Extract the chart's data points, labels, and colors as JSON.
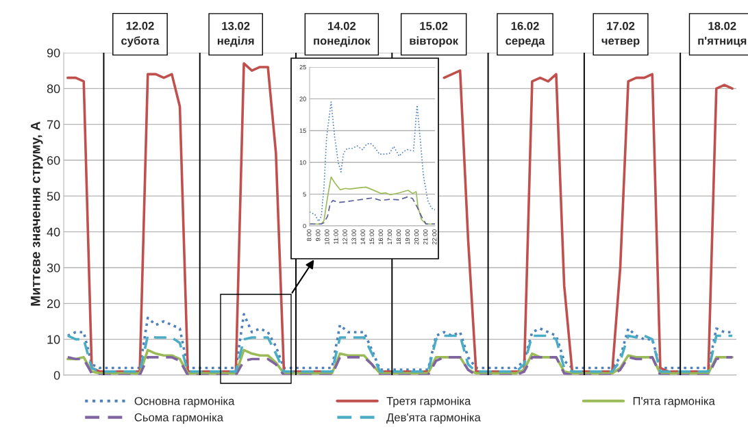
{
  "chart_data": [
    {
      "type": "line",
      "ylabel": "Миттєве значення струму, А",
      "ylim": [
        0,
        90
      ],
      "yticks": [
        0,
        10,
        20,
        30,
        40,
        50,
        60,
        70,
        80,
        90
      ],
      "grid": "y",
      "legend": "bottom",
      "categories": [
        null,
        null,
        null,
        null,
        null,
        null,
        null,
        null,
        null,
        null,
        null,
        null,
        null,
        null,
        null,
        null,
        null,
        null,
        null,
        null,
        null,
        null,
        null,
        null,
        null,
        null,
        null,
        null,
        null,
        null,
        null,
        null,
        null,
        null,
        null,
        null,
        null,
        null,
        null,
        null,
        null,
        null,
        null,
        null,
        null,
        null,
        null,
        null,
        null,
        null,
        null,
        null,
        null,
        null,
        null,
        null,
        null,
        null,
        null,
        null,
        null,
        null,
        null,
        null,
        null,
        null,
        null,
        null,
        null,
        null,
        null,
        null,
        null,
        null,
        null,
        null,
        null,
        null,
        null,
        null,
        null,
        null,
        null,
        null
      ],
      "series": [
        {
          "name": "Основна гармоніка",
          "color": "#4f81bd",
          "line_style": "dotted",
          "values": [
            11,
            12,
            12,
            3,
            2,
            2,
            2,
            2,
            2,
            2,
            16,
            14,
            15,
            14,
            13,
            2,
            2,
            2,
            2,
            2,
            2,
            2,
            17,
            12,
            13,
            12,
            8,
            2,
            2,
            2,
            2,
            2,
            2,
            2,
            14,
            12,
            12,
            12,
            7,
            1.5,
            1.5,
            1.5,
            1.5,
            1.5,
            1.5,
            1.5,
            11,
            12,
            11,
            12,
            5,
            2,
            2,
            2,
            2,
            2,
            2,
            4,
            12,
            13,
            12,
            11,
            4,
            2,
            2,
            2,
            2,
            2,
            2,
            5,
            13,
            11,
            10,
            10,
            2,
            2,
            2,
            2,
            2,
            2,
            2,
            13,
            12,
            12
          ]
        },
        {
          "name": "Третя гармоніка",
          "color": "#c0504d",
          "line_style": "solid",
          "values": [
            83,
            83,
            82,
            2,
            1,
            1,
            1,
            1,
            1,
            1,
            84,
            84,
            83,
            84,
            75,
            1,
            1,
            1,
            1,
            1,
            1,
            1,
            87,
            85,
            86,
            86,
            62,
            1,
            1,
            1,
            1,
            1,
            1,
            1,
            null,
            null,
            null,
            null,
            null,
            1,
            1,
            1,
            1,
            1,
            1,
            1,
            null,
            83,
            84,
            85,
            38,
            1,
            1,
            1,
            1,
            1,
            1,
            1,
            82,
            83,
            82,
            84,
            25,
            1,
            1,
            1,
            1,
            1,
            1,
            30,
            82,
            83,
            83,
            84,
            2,
            1,
            1,
            1,
            1,
            1,
            1,
            80,
            81,
            80
          ]
        },
        {
          "name": "П'ята гармоніка",
          "color": "#9bbb59",
          "line_style": "solid",
          "values": [
            4.5,
            4.5,
            5,
            1,
            0.5,
            0.5,
            0.5,
            0.5,
            0.5,
            0.5,
            7,
            6,
            5.5,
            5.5,
            4.5,
            0.5,
            0.5,
            0.5,
            0.5,
            0.5,
            0.5,
            0.5,
            7,
            6,
            5.5,
            5.5,
            3.5,
            0.5,
            0.5,
            0.5,
            0.5,
            0.5,
            0.5,
            0.5,
            6,
            5.5,
            5.5,
            5.5,
            3,
            0.5,
            0.5,
            0.5,
            0.5,
            0.5,
            0.5,
            0.5,
            5,
            5,
            5,
            5,
            1.5,
            0.5,
            0.5,
            0.5,
            0.5,
            0.5,
            0.5,
            1.5,
            6,
            5,
            5,
            5,
            1,
            0.5,
            0.5,
            0.5,
            0.5,
            0.5,
            0.5,
            2,
            5.5,
            5,
            5,
            5,
            0.5,
            0.5,
            0.5,
            0.5,
            0.5,
            0.5,
            0.5,
            5,
            5,
            5
          ]
        },
        {
          "name": "Сьома гармоніка",
          "color": "#8064a2",
          "line_style": "dashed",
          "values": [
            5,
            4.5,
            4.5,
            0.5,
            0,
            0,
            0,
            0,
            0,
            0,
            5,
            5,
            5,
            5,
            4,
            0,
            0,
            0,
            0,
            0,
            0,
            0,
            4,
            4.5,
            4.5,
            4.5,
            3,
            0,
            0,
            0,
            0,
            0,
            0,
            0,
            5,
            5,
            5,
            5,
            3,
            0,
            0,
            0,
            0,
            0,
            0,
            0,
            4,
            5,
            5,
            5,
            1.5,
            0,
            0,
            0,
            0,
            0,
            0,
            1,
            5,
            5,
            5,
            5,
            0.5,
            0,
            0,
            0,
            0,
            0,
            0,
            1.5,
            5,
            4.5,
            4.5,
            5,
            0,
            0,
            0,
            0,
            0,
            0,
            0,
            4.5,
            5,
            5
          ]
        },
        {
          "name": "Дев'ята гармоніка",
          "color": "#4bacc6",
          "line_style": "dashed",
          "values": [
            11,
            10,
            10,
            2,
            1,
            1,
            1,
            1,
            1,
            1,
            11,
            10.5,
            10.5,
            10.5,
            9,
            1,
            1,
            1,
            1,
            1,
            1,
            1,
            10,
            10.5,
            10.5,
            10.5,
            6,
            1,
            1,
            1,
            1,
            1,
            1,
            1,
            10.5,
            10.5,
            10.5,
            10.5,
            6,
            1,
            1,
            1,
            1,
            1,
            1,
            1,
            10,
            11,
            11,
            11,
            3,
            1,
            1,
            1,
            1,
            1,
            1,
            3,
            11,
            11,
            11,
            10,
            2,
            1,
            1,
            1,
            1,
            1,
            1,
            4,
            11,
            10.5,
            11,
            10,
            1,
            1,
            1,
            1,
            1,
            1,
            1,
            11,
            11,
            11
          ]
        }
      ],
      "annotations": [
        "12.02\nсубота",
        "13.02\nнеділя",
        "14.02\nпонеділок",
        "15.02\nвівторок",
        "16.02\nсереда",
        "17.02\nчетвер",
        "18.02\nп'ятниця"
      ]
    },
    {
      "type": "line",
      "xlim": [
        8,
        22
      ],
      "ylim": [
        0,
        25
      ],
      "yticks": [
        0,
        5,
        10,
        15,
        20,
        25
      ],
      "grid": "y",
      "xticks": [
        {
          "value": 8,
          "label": "8:00"
        },
        {
          "value": 9,
          "label": "9:00"
        },
        {
          "value": 10,
          "label": "10:00"
        },
        {
          "value": 11,
          "label": "11:00"
        },
        {
          "value": 12,
          "label": "12:00"
        },
        {
          "value": 13,
          "label": "13:00"
        },
        {
          "value": 14,
          "label": "14:00"
        },
        {
          "value": 15,
          "label": "15:00"
        },
        {
          "value": 16,
          "label": "16:00"
        },
        {
          "value": 17,
          "label": "17:00"
        },
        {
          "value": 18,
          "label": "18:00"
        },
        {
          "value": 19,
          "label": "19:00"
        },
        {
          "value": 20,
          "label": "20:00"
        },
        {
          "value": 21,
          "label": "21:00"
        },
        {
          "value": 22,
          "label": "22:00"
        }
      ],
      "series": [
        {
          "color": "#4f81bd",
          "line_style": "dotted",
          "x": [
            8,
            8.6,
            9.0,
            9.3,
            9.6,
            9.9,
            10.4,
            10.8,
            11.2,
            11.5,
            11.8,
            12.2,
            12.8,
            13.3,
            13.9,
            14.4,
            14.8,
            15.2,
            15.8,
            16.4,
            16.9,
            17.4,
            18.0,
            18.5,
            18.9,
            19.6,
            20.0,
            20.4,
            20.7,
            21.2,
            21.6,
            22
          ],
          "values": [
            2.2,
            1.8,
            0.7,
            1.5,
            6,
            14,
            19.5,
            14,
            10,
            8.5,
            11.5,
            12.2,
            12.2,
            12.6,
            12,
            12.9,
            13,
            12.5,
            11.3,
            11.3,
            11.4,
            12.5,
            11,
            11.7,
            12,
            11.8,
            19,
            13,
            8,
            4,
            2.8,
            2.5
          ]
        },
        {
          "color": "#9bbb59",
          "line_style": "solid",
          "x": [
            8,
            9,
            9.3,
            9.6,
            10,
            10.4,
            10.8,
            11.4,
            12,
            12.5,
            13.5,
            14.3,
            15,
            16,
            16.5,
            17,
            18,
            19,
            19.5,
            19.9,
            20.1,
            20.5,
            21,
            22
          ],
          "values": [
            0.3,
            0.3,
            0.3,
            0.8,
            4.5,
            7.7,
            6.8,
            5.7,
            5.9,
            5.8,
            6,
            6.1,
            5.7,
            5.1,
            5.2,
            4.9,
            5.2,
            5.6,
            5.1,
            5.4,
            3,
            1,
            0.3,
            0.3
          ]
        },
        {
          "color": "#5b5f97",
          "line_style": "dashed",
          "x": [
            8,
            9.3,
            9.6,
            10,
            10.3,
            10.6,
            11.2,
            12,
            13,
            14,
            15,
            16,
            17,
            18,
            19,
            19.5,
            20,
            20.5,
            21,
            22
          ],
          "values": [
            0.3,
            0.3,
            0.5,
            1.5,
            3.5,
            4,
            3.7,
            3.8,
            4,
            4.2,
            4.4,
            4,
            4.2,
            4.1,
            4.6,
            4.3,
            3,
            1.5,
            0.3,
            0.3
          ]
        }
      ]
    }
  ]
}
